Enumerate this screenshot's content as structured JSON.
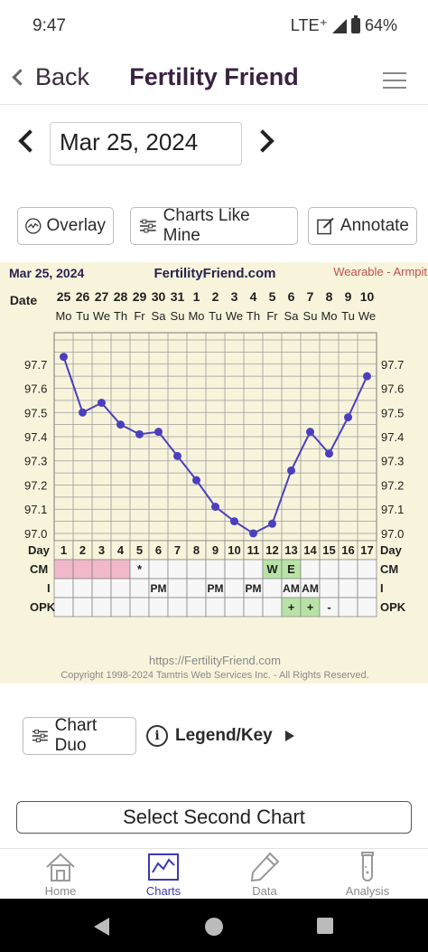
{
  "status_bar": {
    "time": "9:47",
    "network": "LTE⁺",
    "battery": "64%"
  },
  "header": {
    "back_label": "Back",
    "title": "Fertility Friend"
  },
  "date_selector": {
    "value": "Mar 25, 2024"
  },
  "actions": {
    "overlay": "Overlay",
    "charts_like_mine": "Charts Like Mine",
    "annotate": "Annotate"
  },
  "chart_header": {
    "date": "Mar 25, 2024",
    "site": "FertilityFriend.com",
    "mode": "Wearable - Armpit"
  },
  "chart_footer": {
    "url": "https://FertilityFriend.com",
    "copyright": "Copyright 1998-2024 Tamtris Web Services Inc. - All Rights Reserved."
  },
  "bottom_controls": {
    "chart_duo": "Chart Duo",
    "legend_key": "Legend/Key",
    "second_chart": "Select Second Chart"
  },
  "tabs": [
    {
      "label": "Home"
    },
    {
      "label": "Charts"
    },
    {
      "label": "Data"
    },
    {
      "label": "Analysis"
    }
  ],
  "colors": {
    "chart_bg": "#f8f4dc",
    "line": "#4a3fbf",
    "cm_pink": "#f0b8c8",
    "green": "#b9e3a6",
    "accent": "#3a3ab0"
  },
  "chart_data": {
    "type": "line",
    "row_labels": {
      "date": "Date",
      "day": "Day",
      "cm": "CM",
      "i": "I",
      "opk": "OPK"
    },
    "dates": [
      "25",
      "26",
      "27",
      "28",
      "29",
      "30",
      "31",
      "1",
      "2",
      "3",
      "4",
      "5",
      "6",
      "7",
      "8",
      "9",
      "10"
    ],
    "weekdays": [
      "Mo",
      "Tu",
      "We",
      "Th",
      "Fr",
      "Sa",
      "Su",
      "Mo",
      "Tu",
      "We",
      "Th",
      "Fr",
      "Sa",
      "Su",
      "Mo",
      "Tu",
      "We"
    ],
    "days": [
      "1",
      "2",
      "3",
      "4",
      "5",
      "6",
      "7",
      "8",
      "9",
      "10",
      "11",
      "12",
      "13",
      "14",
      "15",
      "16",
      "17"
    ],
    "temperatures": [
      97.73,
      97.5,
      97.54,
      97.45,
      97.41,
      97.42,
      97.32,
      97.22,
      97.11,
      97.05,
      97.0,
      97.04,
      97.26,
      97.42,
      97.33,
      97.48,
      97.65
    ],
    "y_ticks": [
      "97.7",
      "97.6",
      "97.5",
      "97.4",
      "97.3",
      "97.2",
      "97.1",
      "97.0"
    ],
    "ylim": [
      96.97,
      97.83
    ],
    "cm": [
      "",
      "",
      "",
      "",
      "*",
      "",
      "",
      "",
      "",
      "",
      "",
      "W",
      "E",
      "",
      "",
      "",
      ""
    ],
    "cm_shading": [
      "pink",
      "pink",
      "pink",
      "pink",
      "",
      "",
      "",
      "",
      "",
      "",
      "",
      "green",
      "green",
      "",
      "",
      "",
      ""
    ],
    "intercourse": [
      "",
      "",
      "",
      "",
      "",
      "PM",
      "",
      "",
      "PM",
      "",
      "PM",
      "",
      "AM",
      "AM",
      "",
      "",
      ""
    ],
    "opk": [
      "",
      "",
      "",
      "",
      "",
      "",
      "",
      "",
      "",
      "",
      "",
      "",
      "+",
      "+",
      "-",
      "",
      ""
    ],
    "opk_shading": [
      "",
      "",
      "",
      "",
      "",
      "",
      "",
      "",
      "",
      "",
      "",
      "",
      "green",
      "green",
      "",
      "",
      ""
    ]
  }
}
